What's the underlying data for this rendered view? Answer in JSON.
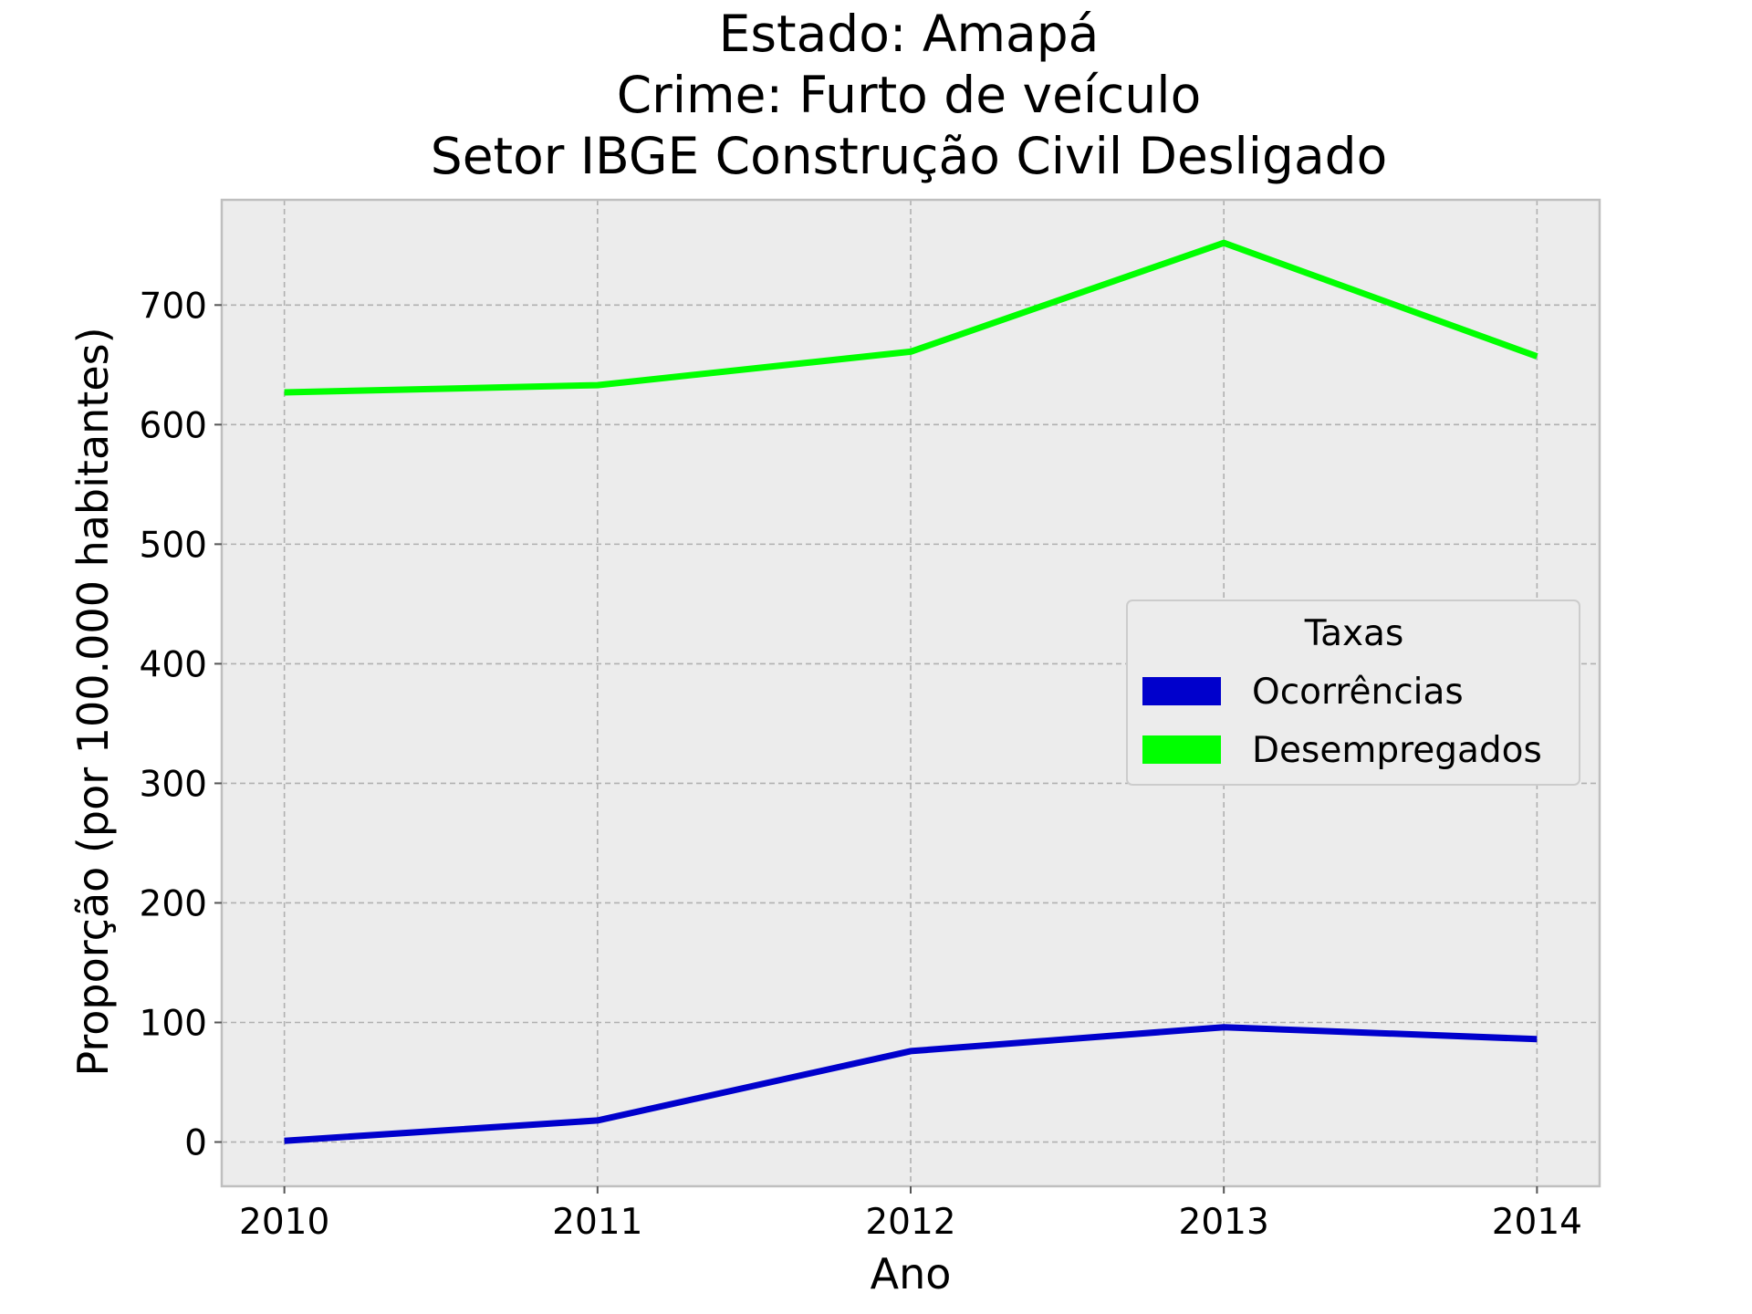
{
  "chart_data": {
    "type": "line",
    "title_lines": [
      "Estado: Amapá",
      "Crime: Furto de veículo",
      "Setor IBGE  Construção Civil   Desligado"
    ],
    "xlabel": "Ano",
    "ylabel": "Proporção (por 100.000 habitantes)",
    "x": [
      2010,
      2011,
      2012,
      2013,
      2014
    ],
    "x_tick_labels": [
      "2010",
      "2011",
      "2012",
      "2013",
      "2014"
    ],
    "y_ticks": [
      0,
      100,
      200,
      300,
      400,
      500,
      600,
      700
    ],
    "y_tick_labels": [
      "0",
      "100",
      "200",
      "300",
      "400",
      "500",
      "600",
      "700"
    ],
    "xlim": [
      2009.8,
      2014.2
    ],
    "ylim": [
      -37,
      788
    ],
    "grid": true,
    "legend": {
      "title": "Taxas",
      "placement": "center-right",
      "entries": [
        "Ocorrências",
        "Desempregados"
      ]
    },
    "series": [
      {
        "name": "Ocorrências",
        "color": "#0000cc",
        "values": [
          1,
          18,
          76,
          96,
          86
        ]
      },
      {
        "name": "Desempregados",
        "color": "#00ff00",
        "values": [
          627,
          633,
          661,
          752,
          657
        ]
      }
    ],
    "colors": {
      "plot_background": "#ececec",
      "frame": "#bfbfbf",
      "grid": "#b0b0b0"
    }
  }
}
